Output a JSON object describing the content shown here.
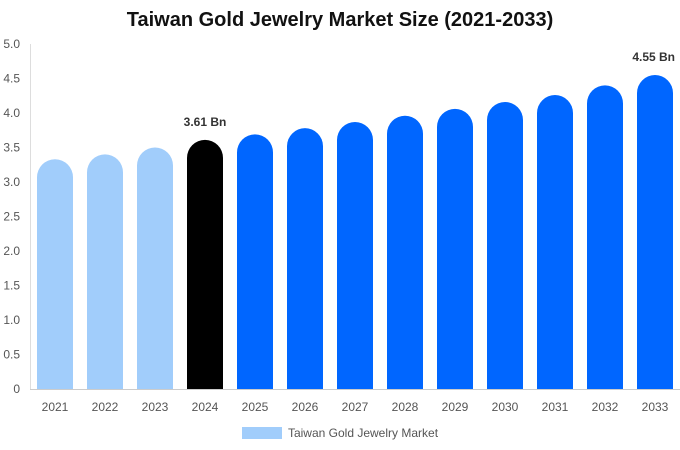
{
  "chart_data": {
    "type": "bar",
    "title": "Taiwan Gold Jewelry Market Size (2021-2033)",
    "xlabel": "",
    "ylabel": "",
    "categories": [
      "2021",
      "2022",
      "2023",
      "2024",
      "2025",
      "2026",
      "2027",
      "2028",
      "2029",
      "2030",
      "2031",
      "2032",
      "2033"
    ],
    "series": [
      {
        "name": "Taiwan Gold Jewelry Market",
        "values": [
          3.33,
          3.4,
          3.5,
          3.61,
          3.69,
          3.78,
          3.87,
          3.96,
          4.06,
          4.16,
          4.26,
          4.4,
          4.55
        ]
      }
    ],
    "ylim": [
      0,
      5.0
    ],
    "yticks": [
      "0",
      "0.5",
      "1.0",
      "1.5",
      "2.0",
      "2.5",
      "3.0",
      "3.5",
      "4.0",
      "4.5",
      "5.0"
    ],
    "data_labels": [
      {
        "index": 3,
        "text": "3.61 Bn"
      },
      {
        "index": 12,
        "text": "4.55 Bn"
      }
    ],
    "colors": {
      "historical": "#a1cdfb",
      "current": "#000000",
      "forecast": "#0066ff",
      "legend": "#a1cdfb"
    },
    "grid": false,
    "legend_position": "bottom"
  }
}
